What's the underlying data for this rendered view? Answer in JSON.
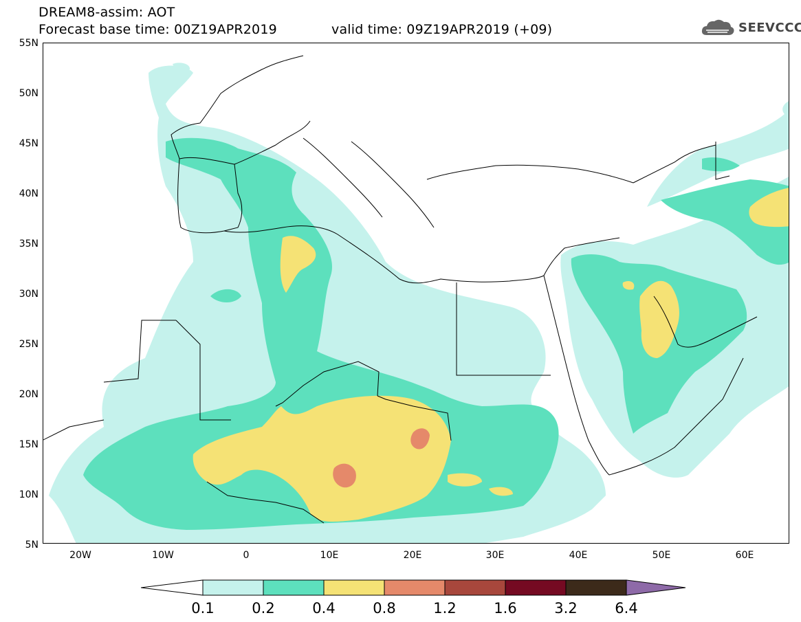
{
  "header": {
    "title": "DREAM8-assim: AOT",
    "base_time": "Forecast base time: 00Z19APR2019",
    "valid_time": "valid time: 09Z19APR2019 (+09)",
    "logo_text": "SEEVCCC"
  },
  "map": {
    "y_ticks": [
      "55N",
      "50N",
      "45N",
      "40N",
      "35N",
      "30N",
      "25N",
      "20N",
      "15N",
      "10N",
      "5N"
    ],
    "x_ticks": [
      "20W",
      "10W",
      "0",
      "10E",
      "20E",
      "30E",
      "40E",
      "50E",
      "60E"
    ],
    "extent": {
      "lon": [
        -25,
        65
      ],
      "lat": [
        5,
        55
      ]
    }
  },
  "legend": {
    "labels": [
      "0.1",
      "0.2",
      "0.4",
      "0.8",
      "1.2",
      "1.6",
      "3.2",
      "6.4"
    ],
    "colors": [
      "#ffffff",
      "#c5f2ec",
      "#5de0bd",
      "#f5e275",
      "#e5896a",
      "#a8473c",
      "#750a22",
      "#3c2a1a",
      "#8e6aa8"
    ]
  },
  "colors": {
    "c1": "#c5f2ec",
    "c2": "#5de0bd",
    "c3": "#f5e275",
    "c4": "#e5896a"
  }
}
